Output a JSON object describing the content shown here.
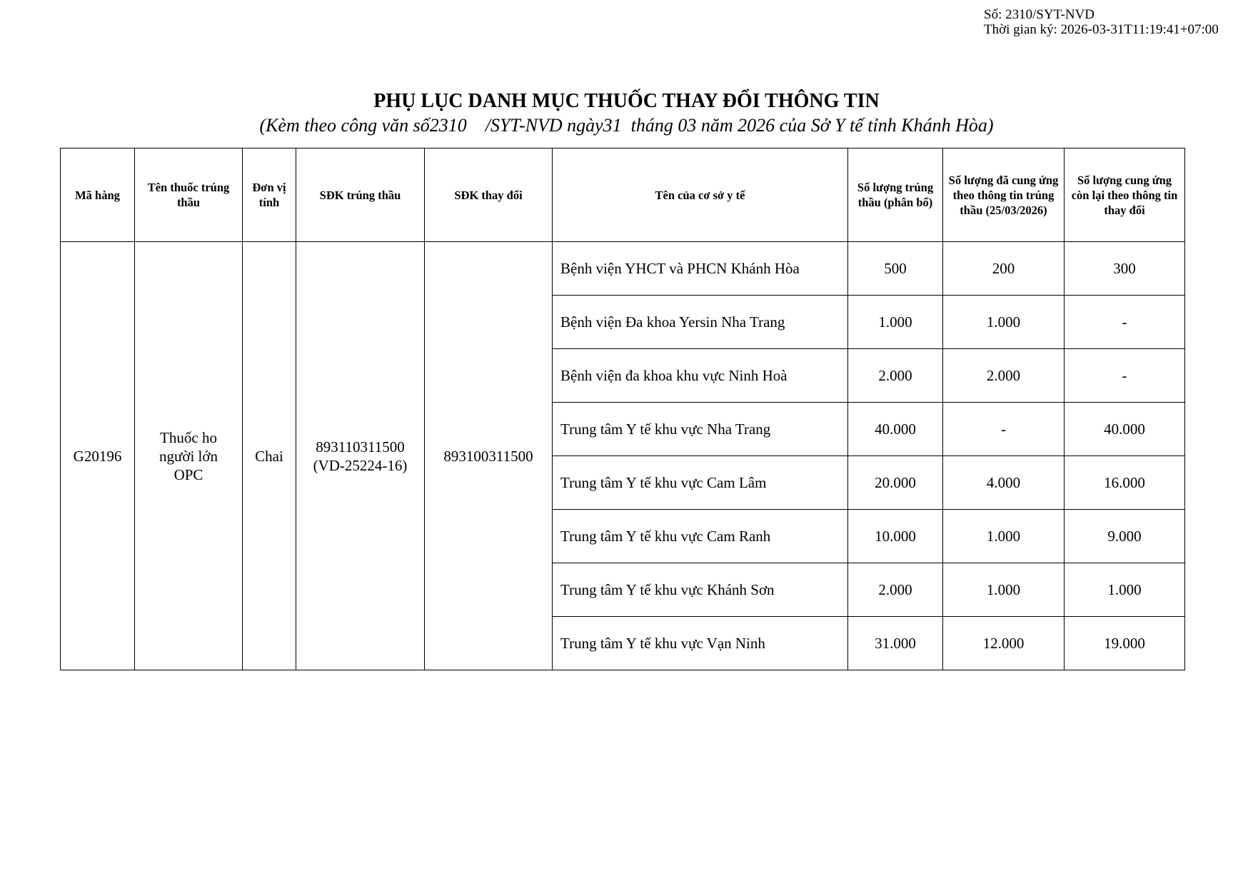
{
  "meta": {
    "so": "Số: 2310/SYT-NVD",
    "thoi_gian": "Thời gian ký: 2026-03-31T11:19:41+07:00"
  },
  "title": "PHỤ LỤC DANH MỤC THUỐC THAY ĐỔI THÔNG TIN",
  "subtitle": "(Kèm theo công văn số2310    /SYT-NVD ngày31  tháng 03 năm 2026 của Sở Y tế tỉnh Khánh Hòa)",
  "headers": [
    "Mã hàng",
    "Tên thuốc trúng thầu",
    "Đơn vị tính",
    "SĐK trúng thầu",
    "SĐK thay đổi",
    "Tên của cơ sở y tế",
    "Số lượng trúng thầu (phân bổ)",
    "Số lượng đã cung ứng theo thông tin trúng thầu (25/03/2026)",
    "Số lượng cung ứng còn lại theo thông tin thay đổi"
  ],
  "item": {
    "ma_hang": "G20196",
    "ten_thuoc": "Thuốc ho người lớn OPC",
    "don_vi": "Chai",
    "sdk_trung_thau": "893110311500 (VD-25224-16)",
    "sdk_thay_doi": "893100311500"
  },
  "rows": [
    {
      "co_so": "Bệnh viện YHCT và PHCN Khánh Hòa",
      "trung_thau": "500",
      "da_cung_ung": "200",
      "con_lai": "300"
    },
    {
      "co_so": "Bệnh viện Đa khoa Yersin Nha Trang",
      "trung_thau": "1.000",
      "da_cung_ung": "1.000",
      "con_lai": "-"
    },
    {
      "co_so": "Bệnh viện đa khoa khu vực Ninh Hoà",
      "trung_thau": "2.000",
      "da_cung_ung": "2.000",
      "con_lai": "-"
    },
    {
      "co_so": "Trung tâm Y tế khu vực Nha Trang",
      "trung_thau": "40.000",
      "da_cung_ung": "-",
      "con_lai": "40.000"
    },
    {
      "co_so": "Trung tâm Y tế khu vực Cam Lâm",
      "trung_thau": "20.000",
      "da_cung_ung": "4.000",
      "con_lai": "16.000"
    },
    {
      "co_so": "Trung tâm Y tế khu vực Cam Ranh",
      "trung_thau": "10.000",
      "da_cung_ung": "1.000",
      "con_lai": "9.000"
    },
    {
      "co_so": "Trung tâm Y tế khu vực Khánh Sơn",
      "trung_thau": "2.000",
      "da_cung_ung": "1.000",
      "con_lai": "1.000"
    },
    {
      "co_so": "Trung tâm Y tế khu vực Vạn Ninh",
      "trung_thau": "31.000",
      "da_cung_ung": "12.000",
      "con_lai": "19.000"
    }
  ]
}
